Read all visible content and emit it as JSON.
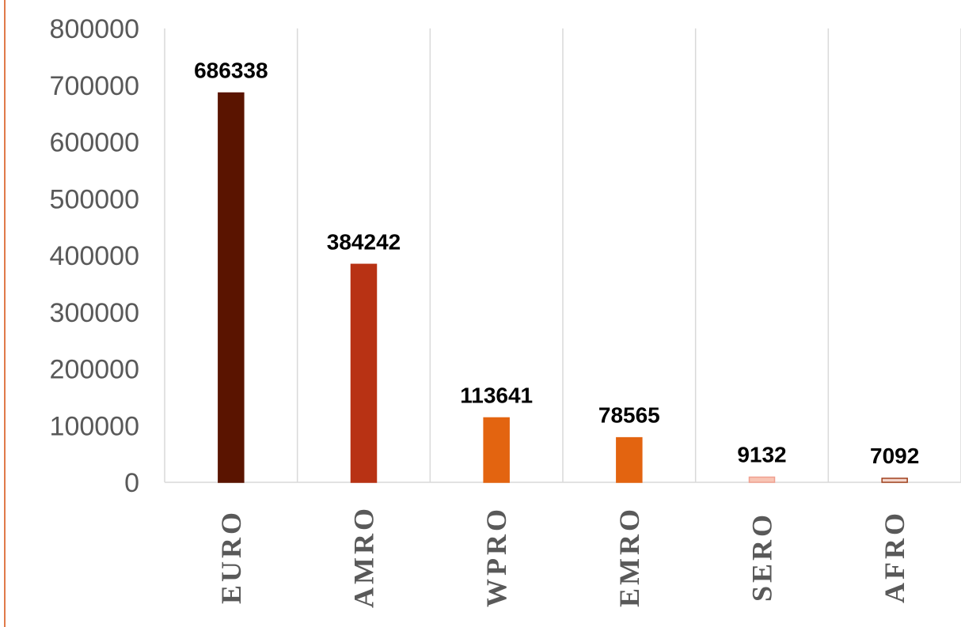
{
  "chart_data": {
    "type": "bar",
    "categories": [
      "EURO",
      "AMRO",
      "WPRO",
      "EMRO",
      "SERO",
      "AFRO"
    ],
    "values": [
      686338,
      384242,
      113641,
      78565,
      9132,
      7092
    ],
    "data_labels": [
      "686338",
      "384242",
      "113641",
      "78565",
      "9132",
      "7092"
    ],
    "bar_colors": [
      "#5A1400",
      "#B83214",
      "#E36410",
      "#E36410",
      "#F8C4B4",
      "#F3D6CC"
    ],
    "bar_outlines": [
      "#5A1400",
      "#B83214",
      "#E36410",
      "#E36410",
      "#F0A090",
      "#A0401C"
    ],
    "y_ticks": [
      "0",
      "100000",
      "200000",
      "300000",
      "400000",
      "500000",
      "600000",
      "700000",
      "800000"
    ],
    "ylim": [
      0,
      800000
    ],
    "grid": "vertical separators",
    "title": "",
    "xlabel": "",
    "ylabel": "",
    "border_color": "#E07A4A"
  }
}
